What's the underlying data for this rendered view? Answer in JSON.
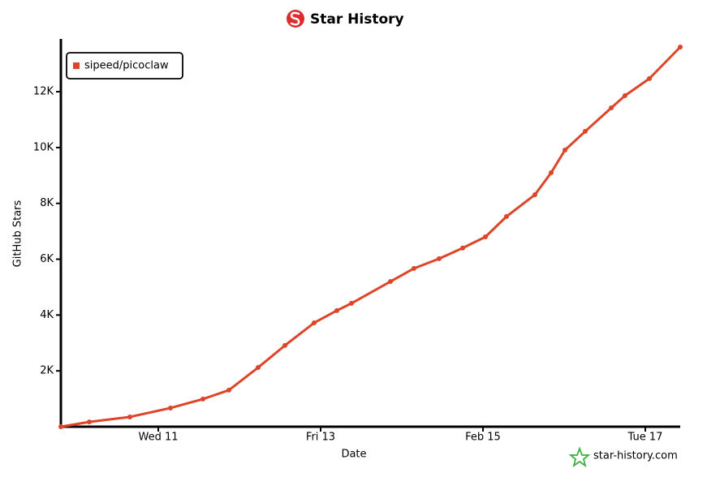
{
  "chart_data": {
    "type": "line",
    "title": "Star History",
    "x_label": "Date",
    "y_label": "GitHub Stars",
    "x": [
      9.8,
      10.15,
      10.65,
      11.15,
      11.55,
      11.87,
      12.23,
      12.56,
      12.92,
      13.2,
      13.38,
      13.86,
      14.15,
      14.46,
      14.75,
      15.03,
      15.29,
      15.64,
      15.84,
      16.01,
      16.26,
      16.58,
      16.75,
      17.05,
      17.43
    ],
    "series": [
      {
        "name": "sipeed/picoclaw",
        "color": "#dd4528",
        "values": [
          0,
          170,
          350,
          670,
          990,
          1310,
          2120,
          2910,
          3720,
          4160,
          4420,
          5200,
          5670,
          6020,
          6400,
          6800,
          7530,
          8310,
          9100,
          9910,
          10580,
          11420,
          11860,
          12470,
          13600
        ]
      }
    ],
    "xlim": [
      9.8,
      17.43
    ],
    "xticks": [
      {
        "value": 11,
        "label": "Wed 11"
      },
      {
        "value": 13,
        "label": "Fri 13"
      },
      {
        "value": 15,
        "label": "Feb 15"
      },
      {
        "value": 17,
        "label": "Tue 17"
      }
    ],
    "ylim": [
      0,
      13600
    ],
    "yticks": [
      {
        "value": 2000,
        "label": "2K"
      },
      {
        "value": 4000,
        "label": "4K"
      },
      {
        "value": 6000,
        "label": "6K"
      },
      {
        "value": 8000,
        "label": "8K"
      },
      {
        "value": 10000,
        "label": "10K"
      },
      {
        "value": 12000,
        "label": "12K"
      }
    ],
    "legend": "upper left",
    "watermark": "star-history.com"
  }
}
